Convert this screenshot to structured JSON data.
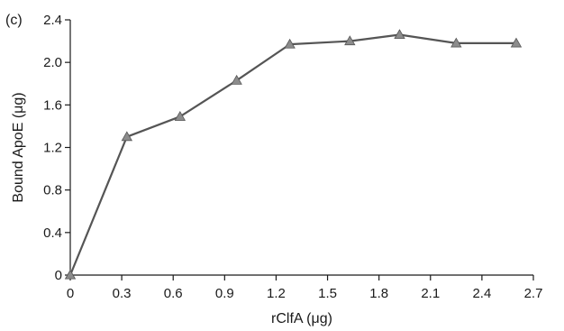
{
  "panel_label": "(c)",
  "chart_data": {
    "type": "line",
    "xlabel": "rClfA (μg)",
    "ylabel": "Bound ApoE (μg)",
    "xlim": [
      0,
      2.7
    ],
    "ylim": [
      0,
      2.4
    ],
    "xticks": [
      0,
      0.3,
      0.6,
      0.9,
      1.2,
      1.5,
      1.8,
      2.1,
      2.4,
      2.7
    ],
    "yticks": [
      0,
      0.4,
      0.8,
      1.2,
      1.6,
      2.0,
      2.4
    ],
    "xtick_labels": [
      "0",
      "0.3",
      "0.6",
      "0.9",
      "1.2",
      "1.5",
      "1.8",
      "2.1",
      "2.4",
      "2.7"
    ],
    "ytick_labels": [
      "0",
      "0.4",
      "0.8",
      "1.2",
      "1.6",
      "2.0",
      "2.4"
    ],
    "grid": false,
    "marker": "triangle",
    "colors": {
      "line": "#555555",
      "marker": "#8c8c8c",
      "axis": "#1a1a1a"
    },
    "series": [
      {
        "x": [
          0,
          0.33,
          0.64,
          0.97,
          1.28,
          1.63,
          1.92,
          2.25,
          2.6
        ],
        "values": [
          0,
          1.3,
          1.49,
          1.83,
          2.17,
          2.2,
          2.26,
          2.18,
          2.18
        ]
      }
    ]
  }
}
